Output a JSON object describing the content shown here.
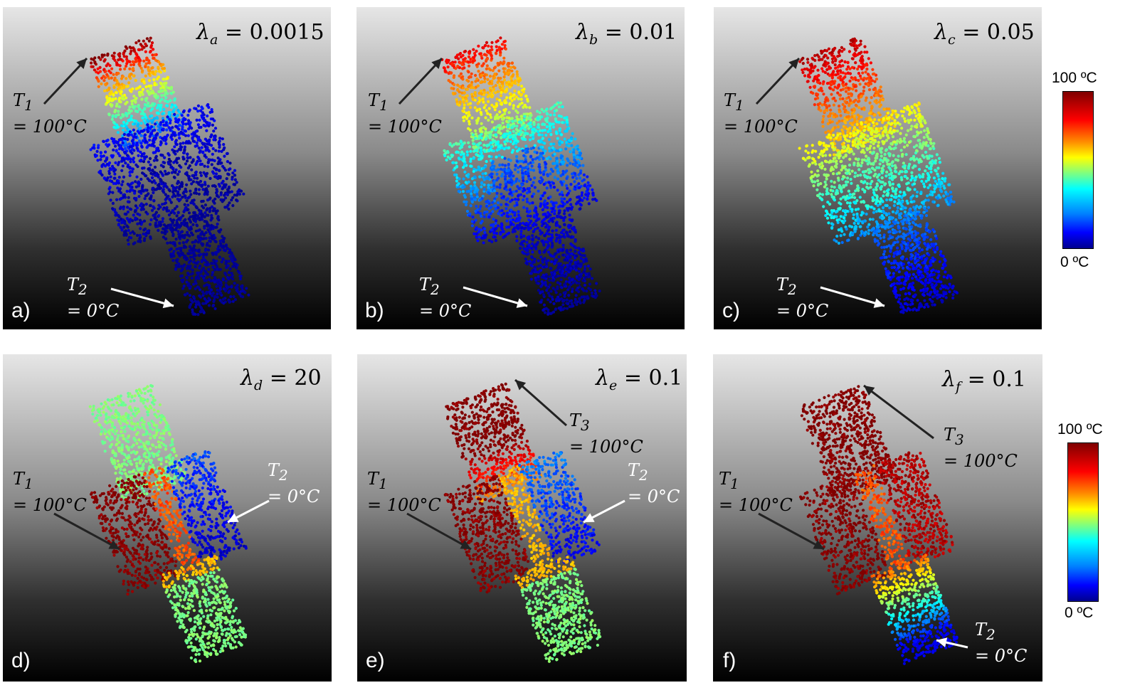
{
  "panels": [
    {
      "id": "a",
      "tag": "a)",
      "lambda_sym": "λ",
      "lambda_sub": "a",
      "lambda_val": "= 0.0015",
      "labels": [
        {
          "sym": "T",
          "sub": "1",
          "line2": "= 100°C",
          "tone": "dark"
        },
        {
          "sym": "T",
          "sub": "2",
          "line2": "= 0°C",
          "tone": "light"
        }
      ]
    },
    {
      "id": "b",
      "tag": "b)",
      "lambda_sym": "λ",
      "lambda_sub": "b",
      "lambda_val": "= 0.01",
      "labels": [
        {
          "sym": "T",
          "sub": "1",
          "line2": "= 100°C",
          "tone": "dark"
        },
        {
          "sym": "T",
          "sub": "2",
          "line2": "= 0°C",
          "tone": "light"
        }
      ]
    },
    {
      "id": "c",
      "tag": "c)",
      "lambda_sym": "λ",
      "lambda_sub": "c",
      "lambda_val": "= 0.05",
      "labels": [
        {
          "sym": "T",
          "sub": "1",
          "line2": "= 100°C",
          "tone": "dark"
        },
        {
          "sym": "T",
          "sub": "2",
          "line2": "= 0°C",
          "tone": "light"
        }
      ]
    },
    {
      "id": "d",
      "tag": "d)",
      "lambda_sym": "λ",
      "lambda_sub": "d",
      "lambda_val": "= 20",
      "labels": [
        {
          "sym": "T",
          "sub": "1",
          "line2": "= 100°C",
          "tone": "dark"
        },
        {
          "sym": "T",
          "sub": "2",
          "line2": "= 0°C",
          "tone": "light"
        }
      ]
    },
    {
      "id": "e",
      "tag": "e)",
      "lambda_sym": "λ",
      "lambda_sub": "e",
      "lambda_val": "= 0.1",
      "labels": [
        {
          "sym": "T",
          "sub": "3",
          "line2": "= 100°C",
          "tone": "dark"
        },
        {
          "sym": "T",
          "sub": "1",
          "line2": "= 100°C",
          "tone": "dark"
        },
        {
          "sym": "T",
          "sub": "2",
          "line2": "= 0°C",
          "tone": "light"
        }
      ]
    },
    {
      "id": "f",
      "tag": "f)",
      "lambda_sym": "λ",
      "lambda_sub": "f",
      "lambda_val": "= 0.1",
      "labels": [
        {
          "sym": "T",
          "sub": "3",
          "line2": "= 100°C",
          "tone": "dark"
        },
        {
          "sym": "T",
          "sub": "1",
          "line2": "= 100°C",
          "tone": "dark"
        },
        {
          "sym": "T",
          "sub": "2",
          "line2": "= 0°C",
          "tone": "light"
        }
      ]
    }
  ],
  "colorbar": {
    "max_label": "100 ºC",
    "min_label": "0 ºC",
    "colormap": [
      "#7f0000",
      "#ff0000",
      "#ff8c00",
      "#ffff00",
      "#7fff7f",
      "#00ffff",
      "#0080ff",
      "#0000ff",
      "#00008f"
    ]
  },
  "temperature_fields": {
    "a": {
      "top": 100,
      "mid_upper": 12,
      "ring": 0,
      "mid_lower": 0,
      "bottom": 0
    },
    "b": {
      "top": 90,
      "mid_upper": 45,
      "ring": 12,
      "mid_lower": 8,
      "bottom": 0
    },
    "c": {
      "top": 95,
      "mid_upper": 65,
      "ring": 45,
      "mid_lower": 25,
      "bottom": 5
    },
    "d": {
      "top": 50,
      "left_block": 100,
      "right_block": 5,
      "center": 80,
      "bottom": 50
    },
    "e": {
      "top": 100,
      "left_block": 100,
      "right_block": 10,
      "center": 70,
      "bottom": 50
    },
    "f": {
      "top": 100,
      "left_block": 100,
      "right_block": 95,
      "center": 80,
      "bottom": 10
    }
  }
}
